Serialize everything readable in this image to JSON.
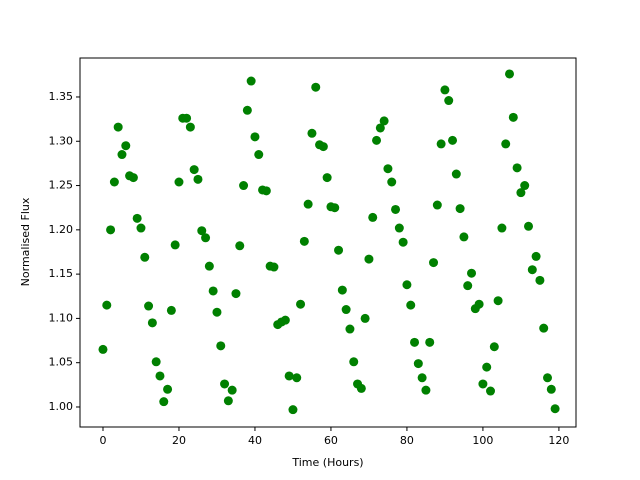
{
  "chart_data": {
    "type": "scatter",
    "x_label": "Time (Hours)",
    "y_label": "Normalised Flux",
    "color": "#008000",
    "x": [
      0,
      1,
      2,
      3,
      4,
      5,
      6,
      7,
      8,
      9,
      10,
      11,
      12,
      13,
      14,
      15,
      16,
      17,
      18,
      19,
      20,
      21,
      22,
      23,
      24,
      25,
      26,
      27,
      28,
      29,
      30,
      31,
      32,
      33,
      34,
      35,
      36,
      37,
      38,
      39,
      40,
      41,
      42,
      43,
      44,
      45,
      46,
      47,
      48,
      49,
      50,
      51,
      52,
      53,
      54,
      55,
      56,
      57,
      58,
      59,
      60,
      61,
      62,
      63,
      64,
      65,
      66,
      67,
      68,
      69,
      70,
      71,
      72,
      73,
      74,
      75,
      76,
      77,
      78,
      79,
      80,
      81,
      82,
      83,
      84,
      85,
      86,
      87,
      88,
      89,
      90,
      91,
      92,
      93,
      94,
      95,
      96,
      97,
      98,
      99,
      100,
      101,
      102,
      103,
      104,
      105,
      106,
      107,
      108,
      109,
      110,
      111,
      112,
      113,
      114,
      115,
      116,
      117,
      118,
      119
    ],
    "values": [
      1.065,
      1.115,
      1.2,
      1.254,
      1.316,
      1.285,
      1.295,
      1.261,
      1.259,
      1.213,
      1.202,
      1.169,
      1.114,
      1.095,
      1.051,
      1.035,
      1.006,
      1.02,
      1.109,
      1.183,
      1.254,
      1.326,
      1.326,
      1.316,
      1.268,
      1.257,
      1.199,
      1.191,
      1.159,
      1.131,
      1.107,
      1.069,
      1.026,
      1.007,
      1.019,
      1.128,
      1.182,
      1.25,
      1.335,
      1.368,
      1.305,
      1.285,
      1.245,
      1.244,
      1.159,
      1.158,
      1.093,
      1.096,
      1.098,
      1.035,
      0.997,
      1.033,
      1.116,
      1.187,
      1.229,
      1.309,
      1.361,
      1.296,
      1.294,
      1.259,
      1.226,
      1.225,
      1.177,
      1.132,
      1.11,
      1.088,
      1.051,
      1.026,
      1.021,
      1.1,
      1.167,
      1.214,
      1.301,
      1.315,
      1.323,
      1.269,
      1.254,
      1.223,
      1.202,
      1.186,
      1.138,
      1.115,
      1.073,
      1.049,
      1.033,
      1.019,
      1.073,
      1.163,
      1.228,
      1.297,
      1.358,
      1.346,
      1.301,
      1.263,
      1.224,
      1.192,
      1.137,
      1.151,
      1.111,
      1.116,
      1.026,
      1.045,
      1.018,
      1.068,
      1.12,
      1.202,
      1.297,
      1.376,
      1.327,
      1.27,
      1.242,
      1.25,
      1.204,
      1.155,
      1.17,
      1.143,
      1.089,
      1.033,
      1.02,
      0.998
    ],
    "xlim": [
      -6.05,
      124.5
    ],
    "ylim": [
      0.9774,
      1.394
    ],
    "xticks": [
      0,
      20,
      40,
      60,
      80,
      100,
      120
    ],
    "yticks": [
      {
        "value": 1.0,
        "label": "1.00"
      },
      {
        "value": 1.05,
        "label": "1.05"
      },
      {
        "value": 1.1,
        "label": "1.10"
      },
      {
        "value": 1.15,
        "label": "1.15"
      },
      {
        "value": 1.2,
        "label": "1.20"
      },
      {
        "value": 1.25,
        "label": "1.25"
      },
      {
        "value": 1.3,
        "label": "1.30"
      },
      {
        "value": 1.35,
        "label": "1.35"
      }
    ]
  }
}
